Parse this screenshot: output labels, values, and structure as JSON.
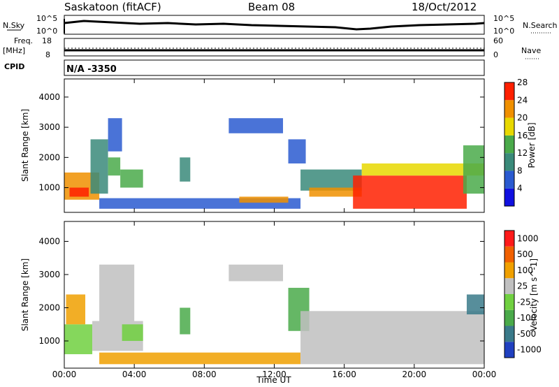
{
  "header": {
    "station": "Saskatoon (fitACF)",
    "beam": "Beam 08",
    "date": "18/Oct/2012"
  },
  "side_labels": {
    "nsky": "N.Sky",
    "nsearch": "N.Search",
    "freq": "Freq.",
    "freq_unit": "[MHz]",
    "nave": "Nave",
    "cpid": "CPID",
    "cpid_value": "N/A -3350"
  },
  "small_axes": {
    "noise_left": [
      "10^5",
      "10^0"
    ],
    "noise_right": [
      "10^5",
      "10^0"
    ],
    "freq_left": [
      "18",
      "8"
    ],
    "nave_right": [
      "60",
      "0"
    ]
  },
  "chart_data": [
    {
      "type": "heatmap",
      "title": "",
      "xlabel": "Time UT",
      "ylabel": "Slant Range [km]",
      "x_ticks": [
        "00:00",
        "04:00",
        "08:00",
        "12:00",
        "16:00",
        "20:00",
        "00:00"
      ],
      "x_range_hours": [
        0,
        24
      ],
      "y_ticks": [
        1000,
        2000,
        3000,
        4000
      ],
      "ylim": [
        180,
        4600
      ],
      "colorbar": {
        "label": "Power [dB]",
        "ticks": [
          "4",
          "8",
          "12",
          "16",
          "20",
          "24",
          "28"
        ],
        "colors": [
          "#1010e0",
          "#2a5ad0",
          "#3a8a7a",
          "#4aaa4a",
          "#e8d800",
          "#f09000",
          "#ff2000"
        ]
      },
      "patches": [
        {
          "t0": 0.0,
          "t1": 2.0,
          "r0": 600,
          "r1": 1500,
          "level": 5
        },
        {
          "t0": 0.3,
          "t1": 1.4,
          "r0": 700,
          "r1": 1000,
          "level": 6
        },
        {
          "t0": 1.5,
          "t1": 2.5,
          "r0": 800,
          "r1": 2600,
          "level": 2
        },
        {
          "t0": 2.5,
          "t1": 3.2,
          "r0": 1400,
          "r1": 2000,
          "level": 3
        },
        {
          "t0": 3.2,
          "t1": 4.5,
          "r0": 1000,
          "r1": 1600,
          "level": 3
        },
        {
          "t0": 2.5,
          "t1": 3.3,
          "r0": 2200,
          "r1": 3300,
          "level": 1
        },
        {
          "t0": 6.6,
          "t1": 7.2,
          "r0": 1200,
          "r1": 2000,
          "level": 2
        },
        {
          "t0": 2.0,
          "t1": 13.5,
          "r0": 300,
          "r1": 650,
          "level": 1
        },
        {
          "t0": 9.4,
          "t1": 12.5,
          "r0": 2800,
          "r1": 3300,
          "level": 1
        },
        {
          "t0": 10.0,
          "t1": 12.8,
          "r0": 500,
          "r1": 700,
          "level": 5
        },
        {
          "t0": 12.8,
          "t1": 13.8,
          "r0": 1800,
          "r1": 2600,
          "level": 1
        },
        {
          "t0": 13.5,
          "t1": 17.0,
          "r0": 900,
          "r1": 1600,
          "level": 2
        },
        {
          "t0": 14.0,
          "t1": 17.0,
          "r0": 700,
          "r1": 1000,
          "level": 5
        },
        {
          "t0": 16.5,
          "t1": 23.0,
          "r0": 300,
          "r1": 1400,
          "level": 6
        },
        {
          "t0": 17.0,
          "t1": 24.0,
          "r0": 1400,
          "r1": 1800,
          "level": 4
        },
        {
          "t0": 22.8,
          "t1": 24.0,
          "r0": 800,
          "r1": 2400,
          "level": 3
        }
      ]
    },
    {
      "type": "heatmap",
      "title": "",
      "xlabel": "Time UT",
      "ylabel": "Slant Range [km]",
      "x_ticks": [
        "00:00",
        "04:00",
        "08:00",
        "12:00",
        "16:00",
        "20:00",
        "00:00"
      ],
      "x_range_hours": [
        0,
        24
      ],
      "y_ticks": [
        1000,
        2000,
        3000,
        4000
      ],
      "ylim": [
        180,
        4600
      ],
      "colorbar": {
        "label": "Velocity [m s^-1]",
        "ticks": [
          "1000",
          "500",
          "100",
          "25",
          "-25",
          "-100",
          "-500",
          "-1000"
        ],
        "colors": [
          "#2040c0",
          "#3a7a8a",
          "#4aaa4a",
          "#70d040",
          "#c0c0c0",
          "#f0a000",
          "#f06000",
          "#ff1a1a"
        ]
      },
      "patches": [
        {
          "t0": 0.0,
          "t1": 1.6,
          "r0": 600,
          "r1": 1500,
          "level": 3
        },
        {
          "t0": 1.6,
          "t1": 4.5,
          "r0": 700,
          "r1": 1600,
          "level": 4
        },
        {
          "t0": 2.0,
          "t1": 4.0,
          "r0": 1600,
          "r1": 3300,
          "level": 4
        },
        {
          "t0": 3.3,
          "t1": 4.5,
          "r0": 1000,
          "r1": 1500,
          "level": 3
        },
        {
          "t0": 0.1,
          "t1": 1.2,
          "r0": 1500,
          "r1": 2400,
          "level": 5
        },
        {
          "t0": 6.6,
          "t1": 7.2,
          "r0": 1200,
          "r1": 2000,
          "level": 2
        },
        {
          "t0": 9.4,
          "t1": 12.5,
          "r0": 2800,
          "r1": 3300,
          "level": 4
        },
        {
          "t0": 2.0,
          "t1": 13.5,
          "r0": 300,
          "r1": 650,
          "level": 5
        },
        {
          "t0": 12.8,
          "t1": 14.0,
          "r0": 1300,
          "r1": 2600,
          "level": 2
        },
        {
          "t0": 13.5,
          "t1": 24.0,
          "r0": 300,
          "r1": 1900,
          "level": 4
        },
        {
          "t0": 23.0,
          "t1": 24.0,
          "r0": 1800,
          "r1": 2400,
          "level": 1
        }
      ]
    }
  ]
}
